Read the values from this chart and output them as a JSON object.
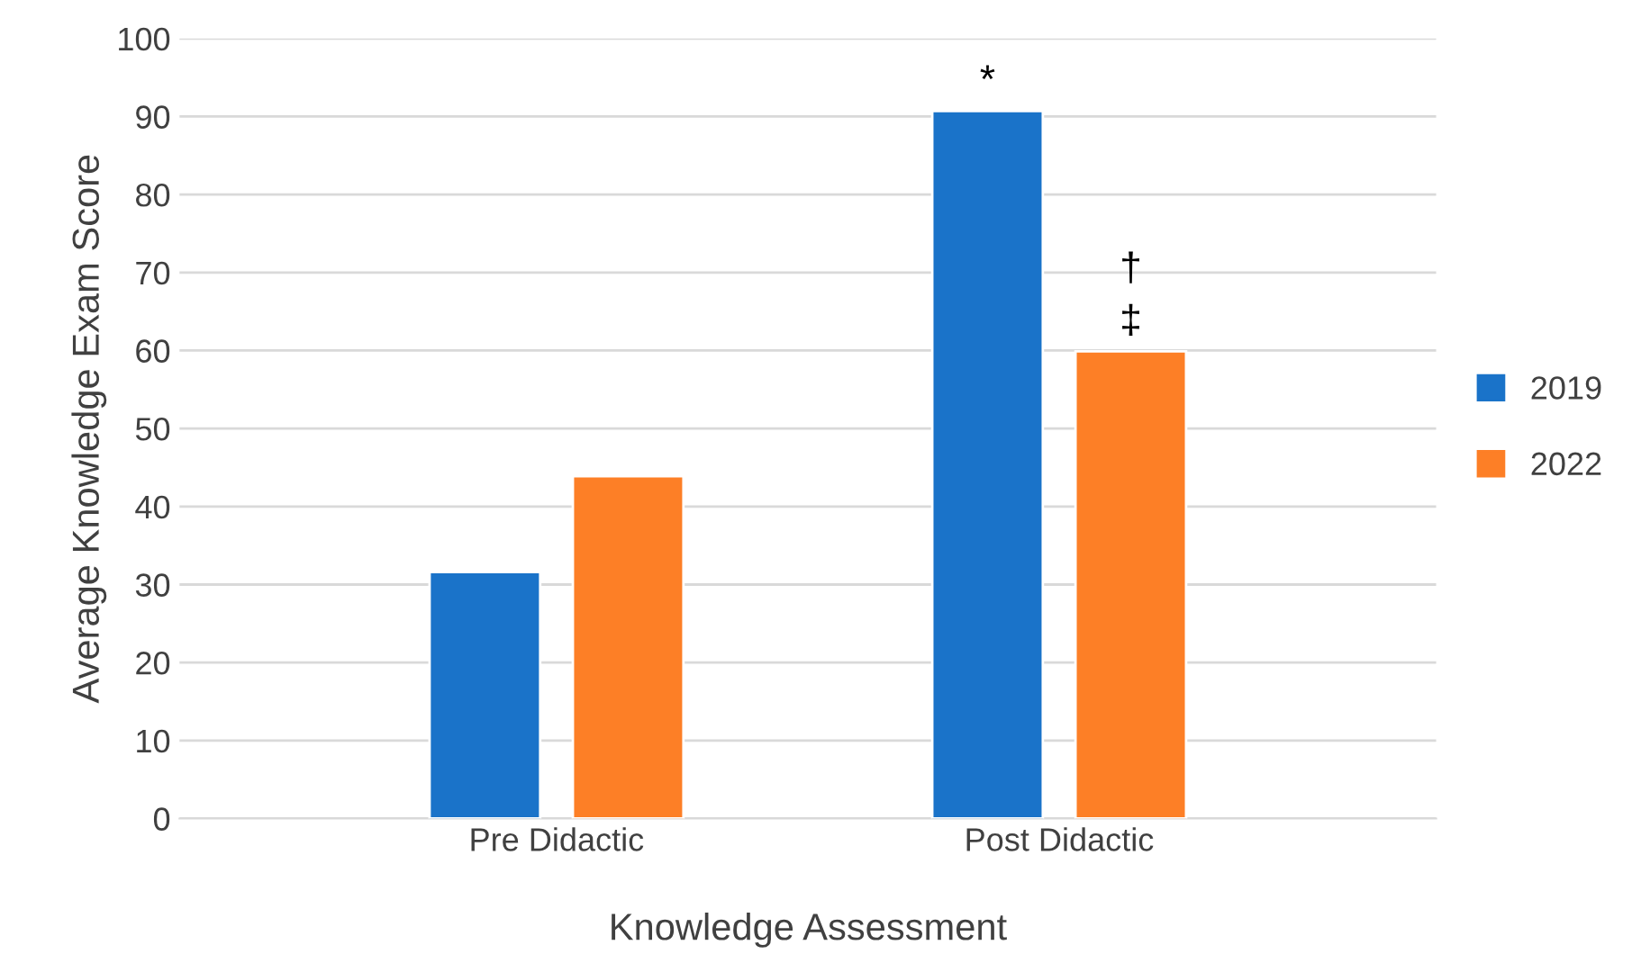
{
  "chart_data": {
    "type": "bar",
    "xlabel": "Knowledge Assessment",
    "ylabel": "Average Knowledge Exam Score",
    "categories": [
      "Pre Didactic",
      "Post Didactic"
    ],
    "series": [
      {
        "name": "2019",
        "color": "#1a73c9",
        "values": [
          31.6,
          90.7
        ]
      },
      {
        "name": "2022",
        "color": "#fd7f26",
        "values": [
          43.9,
          59.9
        ]
      }
    ],
    "ylim": [
      0,
      100
    ],
    "yticks": [
      0,
      10,
      20,
      30,
      40,
      50,
      60,
      70,
      80,
      90,
      100
    ],
    "grid": "y",
    "legend": "right",
    "annotations": [
      "*",
      "†",
      "‡"
    ]
  }
}
